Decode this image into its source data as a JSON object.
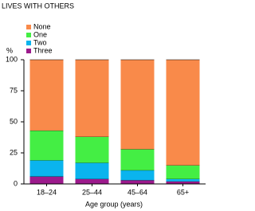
{
  "chart_data": {
    "type": "stacked_bar",
    "title": "LIVES WITH OTHERS",
    "y_label": "%",
    "x_label": "Age group (years)",
    "categories": [
      "18–24",
      "25–44",
      "45–64",
      "65+"
    ],
    "series": [
      {
        "name": "None",
        "color": "#f98a4a",
        "values": [
          57,
          62,
          72,
          85
        ]
      },
      {
        "name": "One",
        "color": "#44ee44",
        "values": [
          24,
          21,
          17,
          11
        ]
      },
      {
        "name": "Two",
        "color": "#0ab4ee",
        "values": [
          13,
          13,
          8,
          2
        ]
      },
      {
        "name": "Three",
        "color": "#9c1a8c",
        "values": [
          6,
          4,
          3,
          2
        ]
      }
    ],
    "ylim": [
      0,
      100
    ],
    "yticks": [
      0,
      25,
      50,
      75,
      100
    ]
  }
}
